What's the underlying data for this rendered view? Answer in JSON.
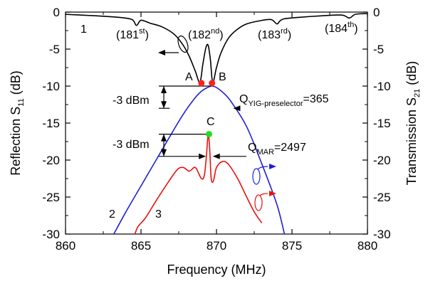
{
  "chart_data": {
    "type": "line",
    "xlabel": "Frequency (MHz)",
    "ylabel_left": {
      "main": "Reflection S",
      "sub": "11",
      "unit": " (dB)"
    },
    "ylabel_right": {
      "main": "Transmission S",
      "sub": "21",
      "unit": " (dB)"
    },
    "xlim": [
      860,
      880
    ],
    "ylim_left": [
      -30,
      0
    ],
    "ylim_right": [
      -30,
      0
    ],
    "x_ticks": [
      860,
      865,
      870,
      875,
      880
    ],
    "x_tick_labels": [
      "860",
      "865",
      "870",
      "875",
      "880"
    ],
    "y_ticks": [
      0,
      -5,
      -10,
      -15,
      -20,
      -25,
      -30
    ],
    "y_tick_labels": [
      "0",
      "-5",
      "-10",
      "-15",
      "-20",
      "-25",
      "-30"
    ],
    "grid": false,
    "colors": {
      "curve_1": "#000000",
      "curve_2": "#1f1fd6",
      "curve_3": "#e81010",
      "marker_red": "#ff2020",
      "marker_green": "#22dd22"
    },
    "series": [
      {
        "name": "1",
        "axis": "left",
        "color": "#000000",
        "x": [
          860.0,
          862.0,
          863.5,
          864.4,
          864.7,
          865.0,
          865.6,
          866.4,
          867.2,
          867.8,
          868.2,
          868.6,
          868.9,
          869.1,
          869.3,
          869.45,
          869.6,
          869.75,
          870.0,
          870.3,
          870.8,
          871.4,
          872.0,
          872.8,
          873.6,
          874.0,
          874.2,
          874.5,
          875.5,
          877.0,
          878.3,
          878.8,
          879.2,
          880.0
        ],
        "y": [
          -0.3,
          -0.5,
          -0.7,
          -1.0,
          -1.8,
          -1.1,
          -1.5,
          -2.0,
          -3.0,
          -4.5,
          -6.0,
          -8.0,
          -9.5,
          -7.0,
          -4.8,
          -4.5,
          -6.5,
          -9.5,
          -7.5,
          -5.5,
          -3.5,
          -2.3,
          -1.6,
          -1.2,
          -1.0,
          -1.6,
          -1.2,
          -0.9,
          -0.7,
          -0.5,
          -0.4,
          -0.8,
          -0.3,
          -0.2
        ]
      },
      {
        "name": "2",
        "axis": "right",
        "color": "#1f1fd6",
        "x": [
          863.2,
          864.0,
          865.0,
          866.0,
          867.0,
          867.8,
          868.5,
          869.0,
          869.4,
          869.7,
          870.0,
          870.5,
          871.0,
          872.0,
          873.0,
          874.0,
          874.5
        ],
        "y": [
          -30.0,
          -27.0,
          -23.5,
          -20.0,
          -16.5,
          -13.8,
          -11.8,
          -10.7,
          -10.2,
          -10.0,
          -10.2,
          -11.0,
          -12.2,
          -15.5,
          -20.5,
          -26.0,
          -30.0
        ]
      },
      {
        "name": "3",
        "axis": "right",
        "color": "#e81010",
        "x": [
          864.6,
          864.8,
          865.3,
          866.0,
          866.8,
          867.4,
          867.8,
          868.2,
          868.6,
          869.0,
          869.2,
          869.35,
          869.45,
          869.55,
          869.65,
          869.8,
          870.0,
          870.4,
          870.8,
          871.4,
          872.0,
          872.5,
          873.0
        ],
        "y": [
          -30.0,
          -29.0,
          -27.8,
          -25.5,
          -23.0,
          -21.3,
          -21.0,
          -21.5,
          -21.0,
          -22.5,
          -22.0,
          -19.0,
          -16.5,
          -18.5,
          -22.5,
          -22.8,
          -21.0,
          -20.2,
          -20.6,
          -22.5,
          -25.0,
          -27.0,
          -28.5
        ]
      }
    ],
    "markers": [
      {
        "label": "A",
        "x": 869.0,
        "y": -9.6,
        "color": "#ff2020"
      },
      {
        "label": "B",
        "x": 869.7,
        "y": -9.6,
        "color": "#ff2020"
      },
      {
        "label": "C",
        "x": 869.5,
        "y": -16.5,
        "color": "#22dd22"
      }
    ],
    "annotations": {
      "mode_181": {
        "pre": "(181",
        "sup": "st",
        "post": ")"
      },
      "mode_182": {
        "pre": "(182",
        "sup": "nd",
        "post": ")"
      },
      "mode_183": {
        "pre": "(183",
        "sup": "rd",
        "post": ")"
      },
      "mode_184": {
        "pre": "(184",
        "sup": "th",
        "post": ")"
      },
      "curve_label_1": "1",
      "curve_label_2": "2",
      "curve_label_3": "3",
      "label_A": "A",
      "label_B": "B",
      "label_C": "C",
      "minus3_upper": "-3 dBm",
      "minus3_lower": "-3 dBm",
      "q_yig": {
        "pre": "Q",
        "sub": "YIG-preselector",
        "post": "=365"
      },
      "q_mar": {
        "pre": "Q",
        "sub": "MAR",
        "post": "=2497"
      }
    }
  }
}
